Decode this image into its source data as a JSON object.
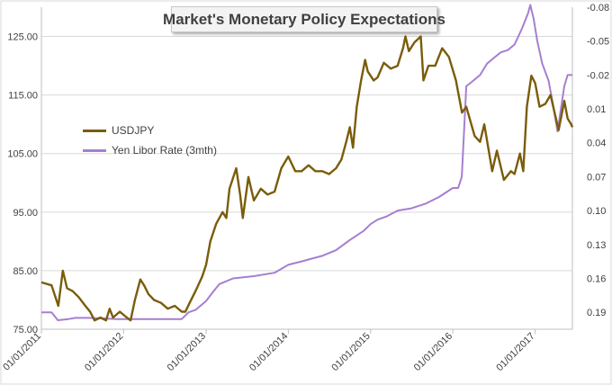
{
  "chart_data": {
    "type": "line",
    "title": "Market's Monetary Policy Expectations",
    "x_ticks": [
      "01/01/2011",
      "01/01/2012",
      "01/01/2013",
      "01/01/2014",
      "01/01/2015",
      "01/01/2016",
      "01/01/2017"
    ],
    "x_range": [
      "2011-01-01",
      "2017-06-15"
    ],
    "y_left": {
      "ticks": [
        "75.00",
        "85.00",
        "95.00",
        "105.00",
        "115.00",
        "125.00"
      ],
      "range": [
        75,
        130
      ]
    },
    "y_right": {
      "ticks": [
        "0.19",
        "0.16",
        "0.13",
        "0.10",
        "0.07",
        "0.04",
        "0.01",
        "-0.02",
        "-0.05",
        "-0.08"
      ],
      "range": [
        0.205,
        -0.08
      ],
      "inverted": true
    },
    "grid": "horizontal",
    "legend_position": "left",
    "colors": {
      "usdjpy": "#7a5c0a",
      "libor": "#a57fd1"
    },
    "series": [
      {
        "name": "USDJPY",
        "axis": "left",
        "points": [
          [
            "2011-01-01",
            83
          ],
          [
            "2011-02-15",
            82.5
          ],
          [
            "2011-03-17",
            79
          ],
          [
            "2011-04-06",
            85
          ],
          [
            "2011-04-25",
            82
          ],
          [
            "2011-05-20",
            81.5
          ],
          [
            "2011-06-15",
            80.5
          ],
          [
            "2011-07-15",
            79
          ],
          [
            "2011-08-05",
            78
          ],
          [
            "2011-08-25",
            76.5
          ],
          [
            "2011-09-20",
            77
          ],
          [
            "2011-10-15",
            76.5
          ],
          [
            "2011-10-31",
            78.5
          ],
          [
            "2011-11-15",
            77
          ],
          [
            "2011-12-15",
            78
          ],
          [
            "2012-01-15",
            77
          ],
          [
            "2012-02-01",
            76.5
          ],
          [
            "2012-02-20",
            80
          ],
          [
            "2012-03-15",
            83.5
          ],
          [
            "2012-04-01",
            82.5
          ],
          [
            "2012-04-20",
            81
          ],
          [
            "2012-05-15",
            80
          ],
          [
            "2012-06-15",
            79.5
          ],
          [
            "2012-07-15",
            78.5
          ],
          [
            "2012-08-15",
            79
          ],
          [
            "2012-09-15",
            78
          ],
          [
            "2012-10-01",
            78
          ],
          [
            "2012-10-20",
            79.5
          ],
          [
            "2012-11-15",
            81.5
          ],
          [
            "2012-12-15",
            84
          ],
          [
            "2013-01-01",
            86
          ],
          [
            "2013-01-20",
            90
          ],
          [
            "2013-02-15",
            93
          ],
          [
            "2013-03-15",
            95
          ],
          [
            "2013-04-01",
            94
          ],
          [
            "2013-04-15",
            99
          ],
          [
            "2013-05-15",
            102.5
          ],
          [
            "2013-06-01",
            98
          ],
          [
            "2013-06-13",
            94
          ],
          [
            "2013-07-08",
            101
          ],
          [
            "2013-08-01",
            97
          ],
          [
            "2013-09-01",
            99
          ],
          [
            "2013-10-01",
            98
          ],
          [
            "2013-11-01",
            98.5
          ],
          [
            "2013-12-01",
            102.5
          ],
          [
            "2014-01-01",
            104.5
          ],
          [
            "2014-02-01",
            102
          ],
          [
            "2014-03-01",
            102
          ],
          [
            "2014-04-01",
            103
          ],
          [
            "2014-05-01",
            102
          ],
          [
            "2014-06-01",
            102
          ],
          [
            "2014-07-01",
            101.5
          ],
          [
            "2014-08-01",
            102.5
          ],
          [
            "2014-08-25",
            104
          ],
          [
            "2014-09-15",
            107
          ],
          [
            "2014-10-01",
            109.5
          ],
          [
            "2014-10-15",
            106
          ],
          [
            "2014-11-01",
            113
          ],
          [
            "2014-11-20",
            117.5
          ],
          [
            "2014-12-08",
            121
          ],
          [
            "2014-12-20",
            119
          ],
          [
            "2015-01-15",
            117.5
          ],
          [
            "2015-02-01",
            118
          ],
          [
            "2015-03-01",
            120.5
          ],
          [
            "2015-04-01",
            119.5
          ],
          [
            "2015-05-01",
            120
          ],
          [
            "2015-05-25",
            123
          ],
          [
            "2015-06-05",
            125
          ],
          [
            "2015-06-20",
            122.5
          ],
          [
            "2015-07-15",
            124
          ],
          [
            "2015-08-12",
            125
          ],
          [
            "2015-08-24",
            117.5
          ],
          [
            "2015-09-15",
            120
          ],
          [
            "2015-10-15",
            120
          ],
          [
            "2015-11-15",
            123
          ],
          [
            "2015-12-15",
            121.5
          ],
          [
            "2016-01-15",
            117.5
          ],
          [
            "2016-02-11",
            112
          ],
          [
            "2016-03-01",
            113
          ],
          [
            "2016-04-07",
            108
          ],
          [
            "2016-05-01",
            107
          ],
          [
            "2016-05-20",
            110
          ],
          [
            "2016-06-24",
            102
          ],
          [
            "2016-07-15",
            105.5
          ],
          [
            "2016-08-15",
            100.5
          ],
          [
            "2016-09-15",
            102
          ],
          [
            "2016-10-01",
            101.5
          ],
          [
            "2016-10-25",
            105
          ],
          [
            "2016-11-09",
            102
          ],
          [
            "2016-11-25",
            113
          ],
          [
            "2016-12-15",
            118.3
          ],
          [
            "2017-01-01",
            117
          ],
          [
            "2017-01-20",
            113
          ],
          [
            "2017-02-15",
            113.5
          ],
          [
            "2017-03-10",
            115
          ],
          [
            "2017-04-15",
            109
          ],
          [
            "2017-05-10",
            114
          ],
          [
            "2017-05-25",
            111
          ],
          [
            "2017-06-10",
            110
          ],
          [
            "2017-06-15",
            109.5
          ]
        ]
      },
      {
        "name": "Yen Libor Rate (3mth)",
        "axis": "right",
        "points": [
          [
            "2011-01-01",
            0.19
          ],
          [
            "2011-02-15",
            0.19
          ],
          [
            "2011-03-15",
            0.197
          ],
          [
            "2011-05-01",
            0.196
          ],
          [
            "2011-06-01",
            0.195
          ],
          [
            "2011-08-01",
            0.195
          ],
          [
            "2011-12-01",
            0.196
          ],
          [
            "2012-03-01",
            0.196
          ],
          [
            "2012-06-01",
            0.196
          ],
          [
            "2012-08-01",
            0.196
          ],
          [
            "2012-09-15",
            0.196
          ],
          [
            "2012-10-15",
            0.19
          ],
          [
            "2012-11-15",
            0.188
          ],
          [
            "2013-01-01",
            0.18
          ],
          [
            "2013-02-01",
            0.172
          ],
          [
            "2013-03-01",
            0.165
          ],
          [
            "2013-05-01",
            0.16
          ],
          [
            "2013-08-01",
            0.158
          ],
          [
            "2013-11-01",
            0.155
          ],
          [
            "2014-01-01",
            0.148
          ],
          [
            "2014-03-01",
            0.145
          ],
          [
            "2014-06-01",
            0.14
          ],
          [
            "2014-08-01",
            0.135
          ],
          [
            "2014-10-01",
            0.126
          ],
          [
            "2014-12-01",
            0.118
          ],
          [
            "2015-01-01",
            0.112
          ],
          [
            "2015-02-01",
            0.108
          ],
          [
            "2015-03-15",
            0.105
          ],
          [
            "2015-05-01",
            0.1
          ],
          [
            "2015-07-01",
            0.098
          ],
          [
            "2015-09-01",
            0.094
          ],
          [
            "2015-11-01",
            0.088
          ],
          [
            "2016-01-01",
            0.08
          ],
          [
            "2016-01-25",
            0.08
          ],
          [
            "2016-02-10",
            0.07
          ],
          [
            "2016-02-20",
            0.03
          ],
          [
            "2016-03-01",
            -0.01
          ],
          [
            "2016-04-01",
            -0.015
          ],
          [
            "2016-05-01",
            -0.02
          ],
          [
            "2016-06-01",
            -0.03
          ],
          [
            "2016-07-01",
            -0.035
          ],
          [
            "2016-08-01",
            -0.04
          ],
          [
            "2016-09-01",
            -0.042
          ],
          [
            "2016-10-01",
            -0.047
          ],
          [
            "2016-11-01",
            -0.06
          ],
          [
            "2016-12-01",
            -0.075
          ],
          [
            "2016-12-10",
            -0.082
          ],
          [
            "2016-12-25",
            -0.07
          ],
          [
            "2017-01-10",
            -0.05
          ],
          [
            "2017-02-01",
            -0.03
          ],
          [
            "2017-03-01",
            -0.015
          ],
          [
            "2017-03-20",
            0.005
          ],
          [
            "2017-04-10",
            0.03
          ],
          [
            "2017-04-25",
            0.01
          ],
          [
            "2017-05-10",
            -0.01
          ],
          [
            "2017-05-25",
            -0.02
          ],
          [
            "2017-06-15",
            -0.02
          ]
        ]
      }
    ]
  }
}
